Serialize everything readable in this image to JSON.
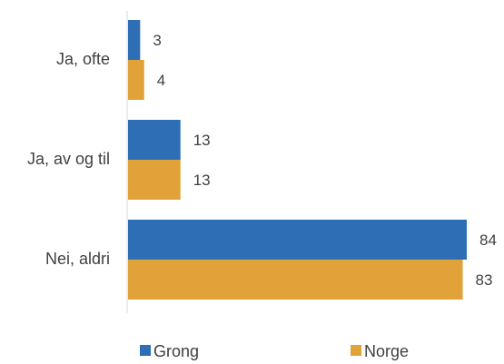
{
  "chart_data": {
    "type": "bar",
    "orientation": "horizontal",
    "categories": [
      "Ja, ofte",
      "Ja, av og til",
      "Nei, aldri"
    ],
    "series": [
      {
        "name": "Grong",
        "values": [
          3,
          13,
          84
        ],
        "color": "#2e6eb5"
      },
      {
        "name": "Norge",
        "values": [
          4,
          13,
          83
        ],
        "color": "#e1a23a"
      }
    ],
    "xlim": [
      0,
      84
    ],
    "grid": false,
    "legend_position": "bottom",
    "data_labels": true
  }
}
